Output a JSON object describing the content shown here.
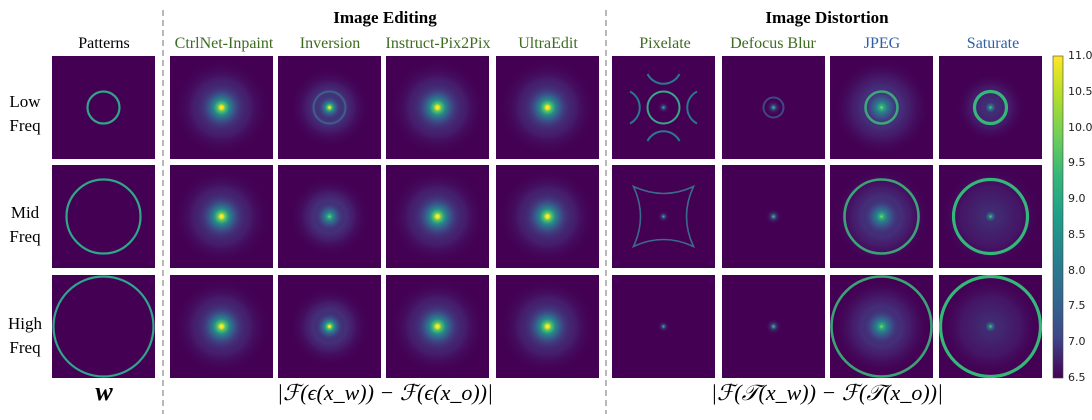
{
  "groups": {
    "editing": "Image Editing",
    "distortion": "Image Distortion"
  },
  "columns": {
    "patterns": {
      "label": "Patterns",
      "color": "#000000"
    },
    "editing": [
      {
        "label": "CtrlNet-Inpaint",
        "color": "#3d6b1f"
      },
      {
        "label": "Inversion",
        "color": "#3d6b1f"
      },
      {
        "label": "Instruct-Pix2Pix",
        "color": "#3d6b1f"
      },
      {
        "label": "UltraEdit",
        "color": "#3d6b1f"
      }
    ],
    "distortion": [
      {
        "label": "Pixelate",
        "color": "#3d6b1f"
      },
      {
        "label": "Defocus Blur",
        "color": "#3d6b1f"
      },
      {
        "label": "JPEG",
        "color": "#2f5fa8"
      },
      {
        "label": "Saturate",
        "color": "#2f5fa8"
      }
    ]
  },
  "rows": [
    {
      "line1": "Low",
      "line2": "Freq"
    },
    {
      "line1": "Mid",
      "line2": "Freq"
    },
    {
      "line1": "High",
      "line2": "Freq"
    }
  ],
  "bottom": {
    "patterns": "w",
    "editing": "|ℱ(ϵ(x_w)) − ℱ(ϵ(x_o))|",
    "distortion": "|ℱ(𝒯(x_w)) − ℱ(𝒯(x_o))|"
  },
  "colorbar": {
    "ticks": [
      "11.0",
      "10.5",
      "10.0",
      "9.5",
      "9.0",
      "8.5",
      "8.0",
      "7.5",
      "7.0",
      "6.5"
    ],
    "min": 6.5,
    "max": 11.0
  },
  "colors": {
    "background": "#440154",
    "ring": "#35b779"
  }
}
